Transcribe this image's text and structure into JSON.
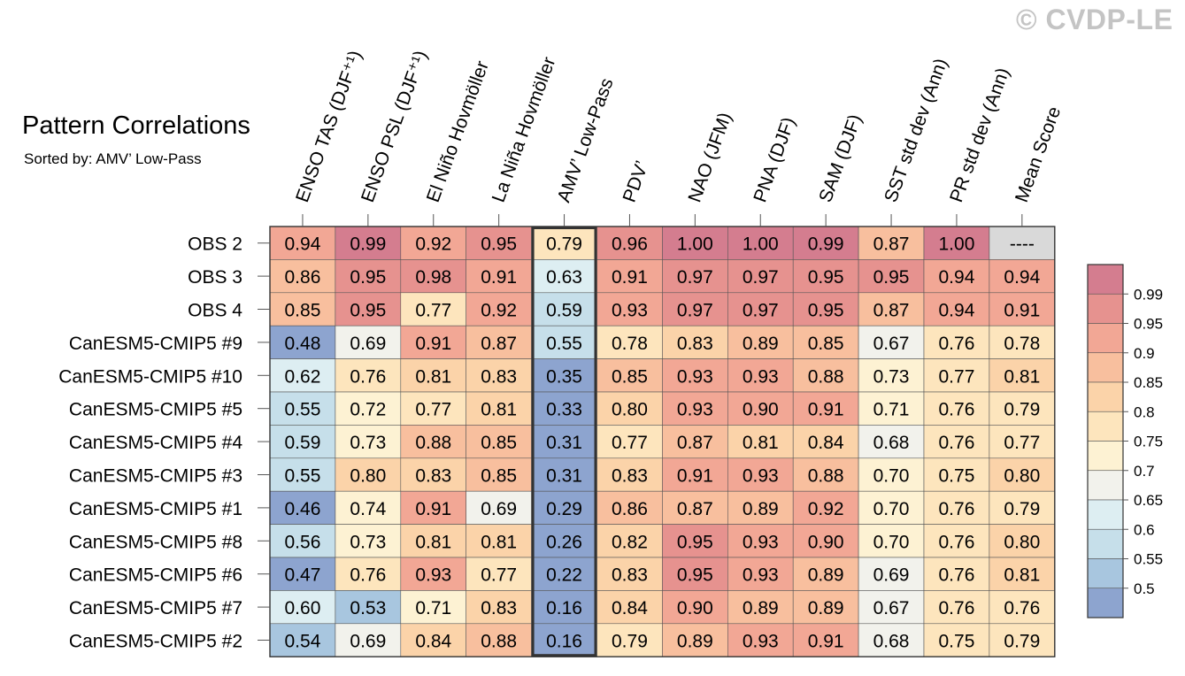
{
  "watermark": "© CVDP-LE",
  "chart_data": {
    "type": "heatmap",
    "title": "Pattern Correlations",
    "subtitle": "Sorted by: AMV’ Low-Pass",
    "columns": [
      "ENSO TAS (DJF⁺¹)",
      "ENSO PSL (DJF⁺¹)",
      "El Niño Hovmöller",
      "La Niña Hovmöller",
      "AMV’ Low-Pass",
      "PDV’",
      "NAO (JFM)",
      "PNA (DJF)",
      "SAM (DJF)",
      "SST std dev (Ann)",
      "PR std dev (Ann)",
      "Mean Score"
    ],
    "rows": [
      "OBS 2",
      "OBS 3",
      "OBS 4",
      "CanESM5-CMIP5 #9",
      "CanESM5-CMIP5 #10",
      "CanESM5-CMIP5 #5",
      "CanESM5-CMIP5 #4",
      "CanESM5-CMIP5 #3",
      "CanESM5-CMIP5 #1",
      "CanESM5-CMIP5 #8",
      "CanESM5-CMIP5 #6",
      "CanESM5-CMIP5 #7",
      "CanESM5-CMIP5 #2"
    ],
    "values": [
      [
        "0.94",
        "0.99",
        "0.92",
        "0.95",
        "0.79",
        "0.96",
        "1.00",
        "1.00",
        "0.99",
        "0.87",
        "1.00",
        "----"
      ],
      [
        "0.86",
        "0.95",
        "0.98",
        "0.91",
        "0.63",
        "0.91",
        "0.97",
        "0.97",
        "0.95",
        "0.95",
        "0.94",
        "0.94"
      ],
      [
        "0.85",
        "0.95",
        "0.77",
        "0.92",
        "0.59",
        "0.93",
        "0.97",
        "0.97",
        "0.95",
        "0.87",
        "0.94",
        "0.91"
      ],
      [
        "0.48",
        "0.69",
        "0.91",
        "0.87",
        "0.55",
        "0.78",
        "0.83",
        "0.89",
        "0.85",
        "0.67",
        "0.76",
        "0.78"
      ],
      [
        "0.62",
        "0.76",
        "0.81",
        "0.83",
        "0.35",
        "0.85",
        "0.93",
        "0.93",
        "0.88",
        "0.73",
        "0.77",
        "0.81"
      ],
      [
        "0.55",
        "0.72",
        "0.77",
        "0.81",
        "0.33",
        "0.80",
        "0.93",
        "0.90",
        "0.91",
        "0.71",
        "0.76",
        "0.79"
      ],
      [
        "0.59",
        "0.73",
        "0.88",
        "0.85",
        "0.31",
        "0.77",
        "0.87",
        "0.81",
        "0.84",
        "0.68",
        "0.76",
        "0.77"
      ],
      [
        "0.55",
        "0.80",
        "0.83",
        "0.85",
        "0.31",
        "0.83",
        "0.91",
        "0.93",
        "0.88",
        "0.70",
        "0.75",
        "0.80"
      ],
      [
        "0.46",
        "0.74",
        "0.91",
        "0.69",
        "0.29",
        "0.86",
        "0.87",
        "0.89",
        "0.92",
        "0.70",
        "0.76",
        "0.79"
      ],
      [
        "0.56",
        "0.73",
        "0.81",
        "0.81",
        "0.26",
        "0.82",
        "0.95",
        "0.93",
        "0.90",
        "0.70",
        "0.76",
        "0.80"
      ],
      [
        "0.47",
        "0.76",
        "0.93",
        "0.77",
        "0.22",
        "0.83",
        "0.95",
        "0.93",
        "0.89",
        "0.69",
        "0.76",
        "0.81"
      ],
      [
        "0.60",
        "0.53",
        "0.71",
        "0.83",
        "0.16",
        "0.84",
        "0.90",
        "0.89",
        "0.89",
        "0.67",
        "0.76",
        "0.76"
      ],
      [
        "0.54",
        "0.69",
        "0.84",
        "0.88",
        "0.16",
        "0.79",
        "0.89",
        "0.93",
        "0.91",
        "0.68",
        "0.75",
        "0.79"
      ]
    ],
    "highlight_column": "AMV’ Low-Pass",
    "missing_color": "#d9d9d9",
    "colorbar": {
      "labels": [
        "0.99",
        "0.95",
        "0.9",
        "0.85",
        "0.8",
        "0.75",
        "0.7",
        "0.65",
        "0.6",
        "0.55",
        "0.5"
      ],
      "colors": [
        "#d47d8f",
        "#e6928f",
        "#f2a795",
        "#f8bf9e",
        "#fbd3a9",
        "#fde5bd",
        "#fdf2d3",
        "#f2f2ec",
        "#ddeef2",
        "#c6dfea",
        "#a8c6df",
        "#8da4cf"
      ]
    }
  }
}
